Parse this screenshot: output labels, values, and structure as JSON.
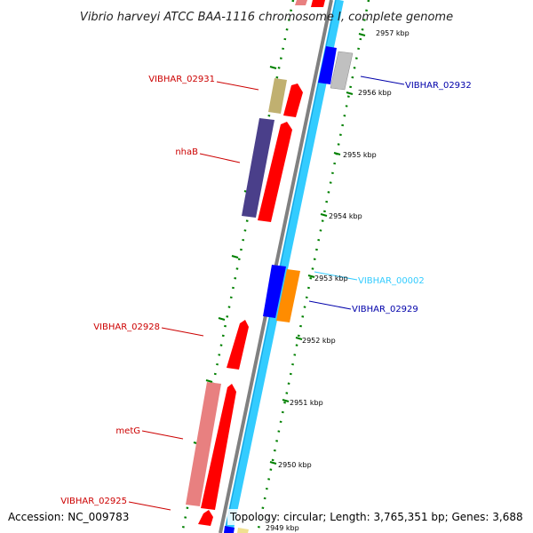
{
  "title": "Vibrio harveyi ATCC BAA-1116 chromosome I, complete genome",
  "footer": {
    "accession": "Accession: NC_009783",
    "topology": "Topology: circular; Length: 3,765,351 bp; Genes: 3,688"
  },
  "ruler": [
    {
      "label": "2957 kbp",
      "pos": 2957
    },
    {
      "label": "2956 kbp",
      "pos": 2956
    },
    {
      "label": "2955 kbp",
      "pos": 2955
    },
    {
      "label": "2954 kbp",
      "pos": 2954
    },
    {
      "label": "2953 kbp",
      "pos": 2953
    },
    {
      "label": "2952 kbp",
      "pos": 2952
    },
    {
      "label": "2951 kbp",
      "pos": 2951
    },
    {
      "label": "2950 kbp",
      "pos": 2950
    },
    {
      "label": "2949 kbp",
      "pos": 2949
    }
  ],
  "colors": {
    "forward_cds": "#ff0000",
    "reverse_cds": "#e88080",
    "backbone": "#808080",
    "strand_track": "#33ccff",
    "ruler_ticks": "#008000",
    "label_red": "#cc0000",
    "label_blue": "#0000aa",
    "label_cyan": "#33ccff"
  },
  "gene_labels": [
    {
      "id": "VIBHAR_02931",
      "text": "VIBHAR_02931",
      "color": "#cc0000"
    },
    {
      "id": "VIBHAR_02932",
      "text": "VIBHAR_02932",
      "color": "#0000aa"
    },
    {
      "id": "nhaB",
      "text": "nhaB",
      "color": "#cc0000"
    },
    {
      "id": "VIBHAR_00002",
      "text": "VIBHAR_00002",
      "color": "#33ccff"
    },
    {
      "id": "VIBHAR_02929",
      "text": "VIBHAR_02929",
      "color": "#0000aa"
    },
    {
      "id": "VIBHAR_02928",
      "text": "VIBHAR_02928",
      "color": "#cc0000"
    },
    {
      "id": "metG",
      "text": "metG",
      "color": "#cc0000"
    },
    {
      "id": "VIBHAR_02925",
      "text": "VIBHAR_02925",
      "color": "#cc0000"
    }
  ]
}
